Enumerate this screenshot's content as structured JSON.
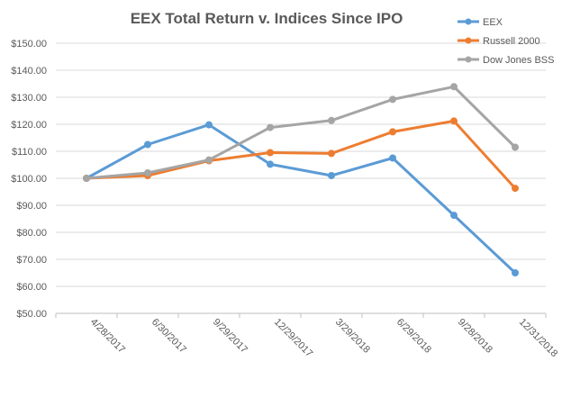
{
  "chart_data": {
    "type": "line",
    "title": "EEX Total Return v. Indices Since IPO",
    "xlabel": "",
    "ylabel": "",
    "categories": [
      "4/28/2017",
      "6/30/2017",
      "9/29/2017",
      "12/29/2017",
      "3/29/2018",
      "6/29/2018",
      "9/28/2018",
      "12/31/2018"
    ],
    "yticks": [
      "$50.00",
      "$60.00",
      "$70.00",
      "$80.00",
      "$90.00",
      "$100.00",
      "$110.00",
      "$120.00",
      "$130.00",
      "$140.00",
      "$150.00"
    ],
    "ylim": [
      50,
      150
    ],
    "grid": true,
    "legend_position": "top-right",
    "series": [
      {
        "name": "EEX",
        "color": "#5B9BD5",
        "values": [
          100,
          112.5,
          119.8,
          105.2,
          101.0,
          107.5,
          86.3,
          65.0
        ]
      },
      {
        "name": "Russell 2000",
        "color": "#ED7D31",
        "values": [
          100,
          101.0,
          106.5,
          109.5,
          109.2,
          117.2,
          121.2,
          96.3
        ]
      },
      {
        "name": "Dow Jones BSS",
        "color": "#A5A5A5",
        "values": [
          100,
          102.0,
          106.8,
          118.8,
          121.4,
          129.2,
          133.9,
          111.5
        ]
      }
    ]
  }
}
